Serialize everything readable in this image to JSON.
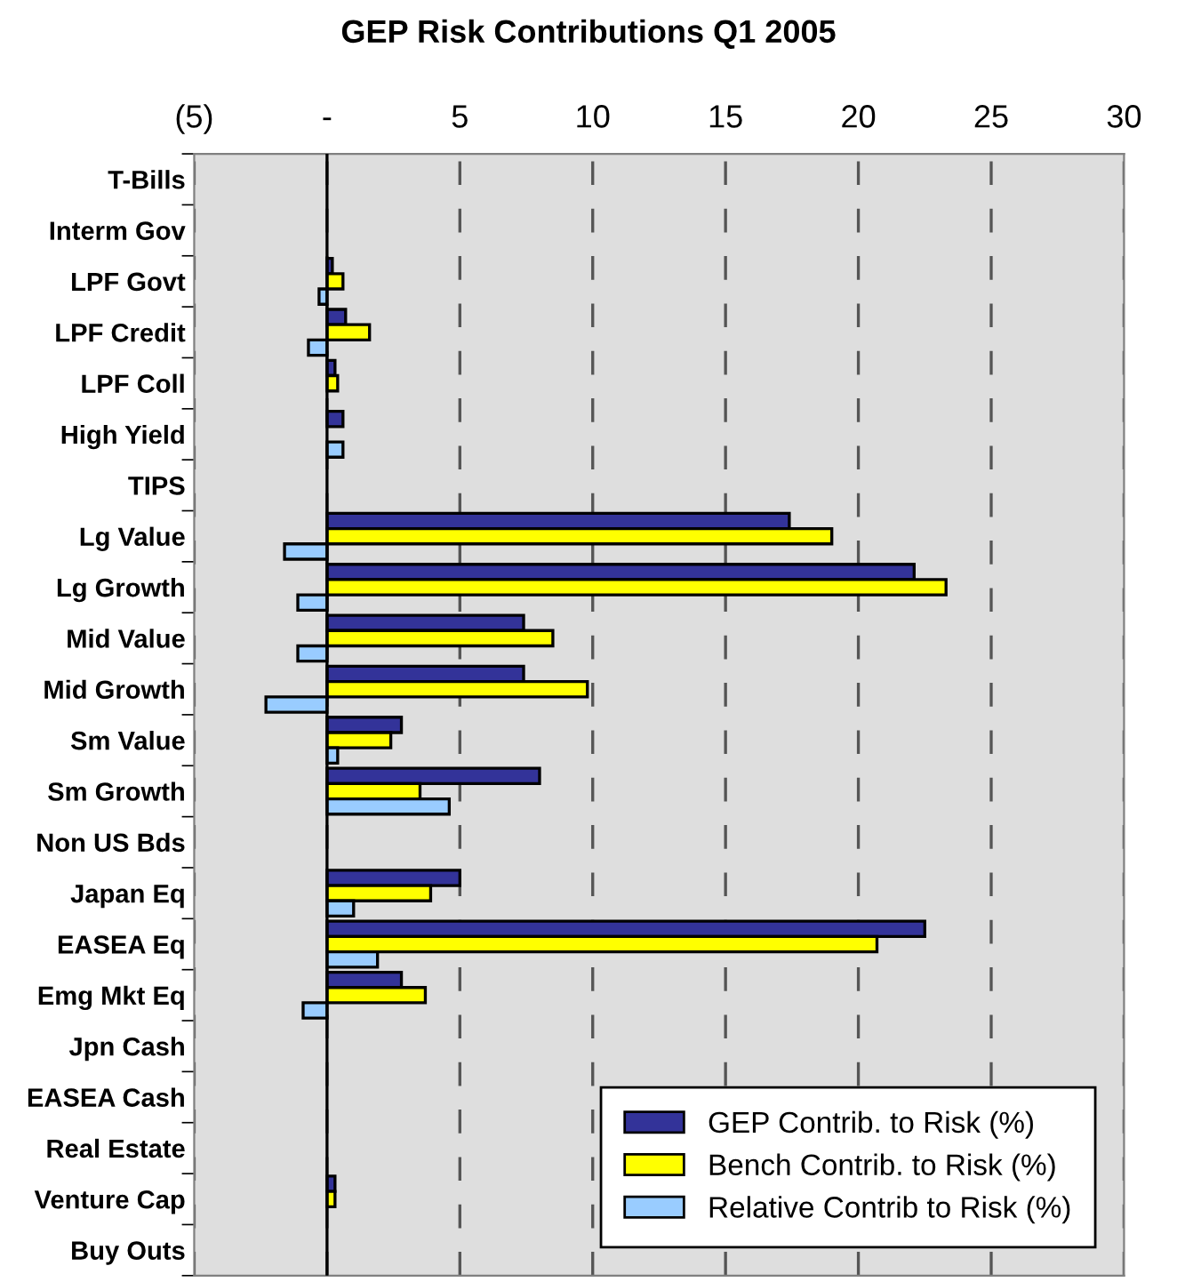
{
  "chart_data": {
    "type": "bar",
    "orientation": "horizontal",
    "title": "GEP Risk Contributions Q1 2005",
    "categories": [
      "T-Bills",
      "Interm Gov",
      "LPF Govt",
      "LPF Credit",
      "LPF Coll",
      "High Yield",
      "TIPS",
      "Lg Value",
      "Lg Growth",
      "Mid Value",
      "Mid Growth",
      "Sm Value",
      "Sm Growth",
      "Non US Bds",
      "Japan Eq",
      "EASEA Eq",
      "Emg Mkt Eq",
      "Jpn Cash",
      "EASEA Cash",
      "Real Estate",
      "Venture Cap",
      "Buy Outs"
    ],
    "series": [
      {
        "name": "GEP Contrib. to Risk (%)",
        "color": "#333399",
        "values": [
          null,
          null,
          0.2,
          0.7,
          0.3,
          0.6,
          null,
          17.4,
          22.1,
          7.4,
          7.4,
          2.8,
          8.0,
          null,
          5.0,
          22.5,
          2.8,
          null,
          null,
          null,
          0.3,
          null
        ]
      },
      {
        "name": "Bench Contrib. to Risk (%)",
        "color": "#ffff00",
        "values": [
          null,
          null,
          0.6,
          1.6,
          0.4,
          null,
          null,
          19.0,
          23.3,
          8.5,
          9.8,
          2.4,
          3.5,
          null,
          3.9,
          20.7,
          3.7,
          null,
          null,
          null,
          0.3,
          null
        ]
      },
      {
        "name": "Relative Contrib to Risk (%)",
        "color": "#99ccff",
        "values": [
          null,
          null,
          -0.3,
          -0.7,
          null,
          0.6,
          null,
          -1.6,
          -1.1,
          -1.1,
          -2.3,
          0.4,
          4.6,
          null,
          1.0,
          1.9,
          -0.9,
          null,
          null,
          null,
          null,
          null
        ]
      }
    ],
    "xlim": [
      -5,
      30
    ],
    "xticks": [
      {
        "value": -5,
        "label": "(5)"
      },
      {
        "value": 0,
        "label": "-"
      },
      5,
      10,
      15,
      20,
      25,
      30
    ],
    "grid": "x",
    "legend": "bottom right"
  }
}
